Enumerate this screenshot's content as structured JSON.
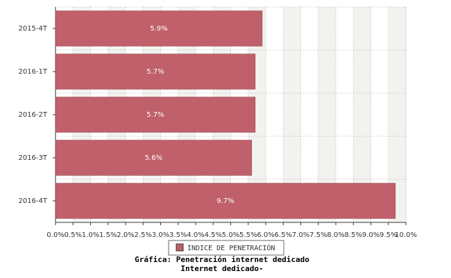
{
  "chart_data": {
    "type": "bar",
    "orientation": "horizontal",
    "title": "Gráfica: Penetración internet dedicado",
    "subtitle": "Internet dedicado-",
    "categories": [
      "2015-4T",
      "2016-1T",
      "2016-2T",
      "2016-3T",
      "2016-4T"
    ],
    "series": [
      {
        "name": "INDICE DE PENETRACIÓN",
        "color": "#c0606a",
        "values": [
          5.9,
          5.7,
          5.7,
          5.6,
          9.7
        ],
        "value_labels": [
          "5.9%",
          "5.7%",
          "5.7%",
          "5.6%",
          "9.7%"
        ]
      }
    ],
    "xlim": [
      0,
      10
    ],
    "xticks": [
      {
        "value": 0,
        "label": "0.0%"
      },
      {
        "value": 0.5,
        "label": "0.5%"
      },
      {
        "value": 1,
        "label": "1.0%"
      },
      {
        "value": 1.5,
        "label": "1.5%"
      },
      {
        "value": 2,
        "label": "2.0%"
      },
      {
        "value": 2.5,
        "label": "2.5%"
      },
      {
        "value": 3,
        "label": "3.0%"
      },
      {
        "value": 3.5,
        "label": "3.5%"
      },
      {
        "value": 4,
        "label": "4.0%"
      },
      {
        "value": 4.5,
        "label": "4.5%"
      },
      {
        "value": 5,
        "label": "5.0%"
      },
      {
        "value": 5.5,
        "label": "5.5%"
      },
      {
        "value": 6,
        "label": "6.0%"
      },
      {
        "value": 6.5,
        "label": "6.5%"
      },
      {
        "value": 7,
        "label": "7.0%"
      },
      {
        "value": 7.5,
        "label": "7.5%"
      },
      {
        "value": 8,
        "label": "8.0%"
      },
      {
        "value": 8.5,
        "label": "8.5%"
      },
      {
        "value": 9,
        "label": "9.0%"
      },
      {
        "value": 9.5,
        "label": "9.5%"
      },
      {
        "value": 10,
        "label": "10.0%"
      }
    ],
    "grid": true
  }
}
